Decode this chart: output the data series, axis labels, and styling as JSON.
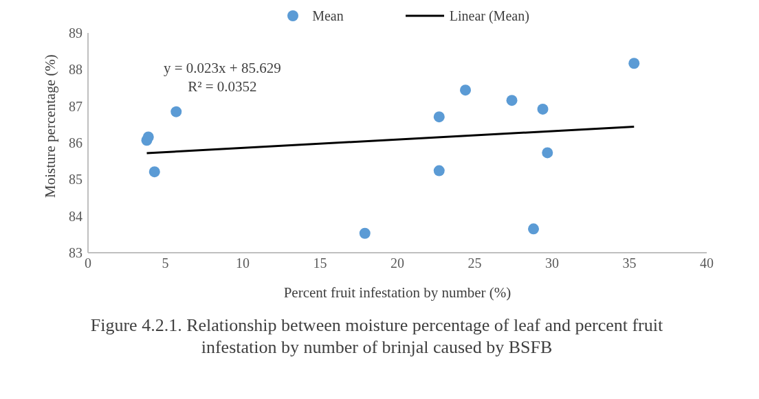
{
  "chart_data": {
    "type": "scatter",
    "title": "Figure 4.2.1. Relationship between moisture percentage of leaf and percent fruit infestation by number of brinjal caused by BSFB",
    "xlabel": "Percent fruit infestation by number (%)",
    "ylabel": "Moisture percentage (%)",
    "series": [
      {
        "name": "Mean",
        "marker": "circle",
        "color": "#5b9bd5",
        "x": [
          3.8,
          3.9,
          4.3,
          5.7,
          17.9,
          22.7,
          22.7,
          24.4,
          27.4,
          28.8,
          29.4,
          29.7,
          35.3
        ],
        "values": [
          86.07,
          86.16,
          85.21,
          86.85,
          83.53,
          86.71,
          85.24,
          87.44,
          87.16,
          83.65,
          86.92,
          85.73,
          88.17
        ]
      },
      {
        "name": "Linear (Mean)",
        "type": "line",
        "color": "#000000",
        "x": [
          3.8,
          35.3
        ],
        "values": [
          85.72,
          86.44
        ]
      }
    ],
    "annotations": [
      "y = 0.023x + 85.629",
      "R² = 0.0352"
    ],
    "xlim": [
      0,
      40
    ],
    "xticks": [
      0,
      5,
      10,
      15,
      20,
      25,
      30,
      35,
      40
    ],
    "ylim": [
      83,
      89
    ],
    "yticks": [
      83,
      84,
      85,
      86,
      87,
      88,
      89
    ],
    "grid": false,
    "legend": "top"
  }
}
